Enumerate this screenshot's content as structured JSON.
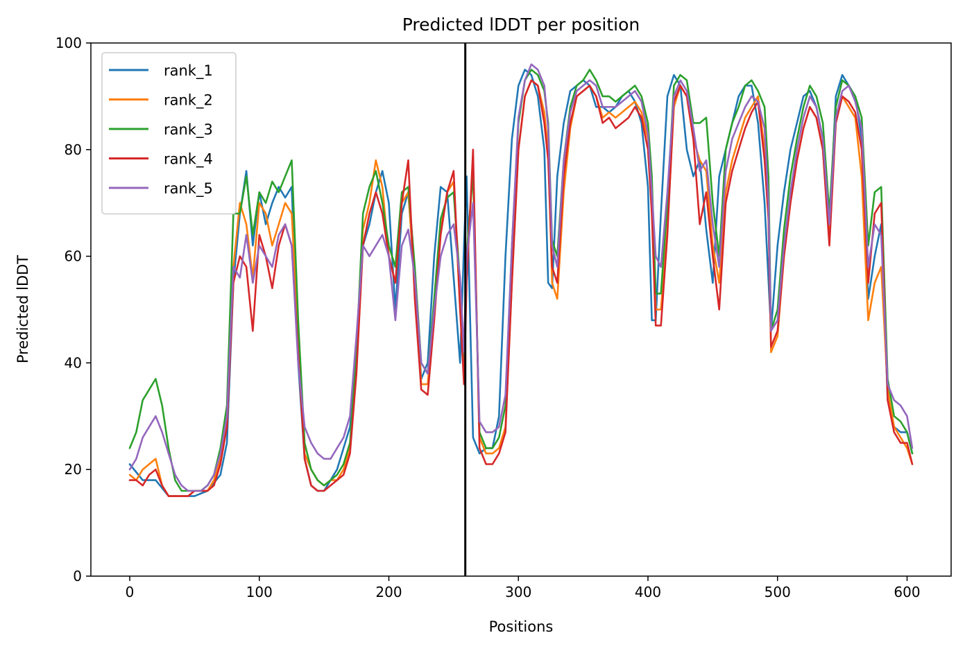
{
  "chart_data": {
    "type": "line",
    "title": "Predicted lDDT per position",
    "xlabel": "Positions",
    "ylabel": "Predicted lDDT",
    "xlim": [
      -30,
      634
    ],
    "ylim": [
      0,
      100
    ],
    "xticks": [
      0,
      100,
      200,
      300,
      400,
      500,
      600
    ],
    "yticks": [
      0,
      20,
      40,
      60,
      80,
      100
    ],
    "grid": false,
    "legend": "top-left",
    "vline": {
      "x": 259,
      "color": "#000000"
    },
    "series": [
      {
        "name": "rank_1",
        "color": "#1f77b4",
        "x": [
          0,
          10,
          20,
          30,
          40,
          50,
          60,
          70,
          75,
          80,
          85,
          90,
          95,
          100,
          105,
          110,
          115,
          120,
          125,
          130,
          135,
          140,
          145,
          150,
          155,
          160,
          165,
          170,
          175,
          180,
          185,
          190,
          195,
          200,
          205,
          210,
          215,
          220,
          225,
          230,
          235,
          240,
          245,
          250,
          255,
          258,
          260,
          265,
          270,
          275,
          280,
          285,
          290,
          295,
          300,
          305,
          310,
          315,
          320,
          323,
          326,
          330,
          335,
          340,
          345,
          350,
          355,
          360,
          365,
          370,
          375,
          380,
          385,
          390,
          395,
          400,
          403,
          406,
          410,
          415,
          420,
          425,
          430,
          435,
          440,
          445,
          450,
          455,
          460,
          465,
          470,
          475,
          480,
          485,
          490,
          495,
          500,
          505,
          510,
          515,
          520,
          525,
          530,
          535,
          540,
          545,
          550,
          555,
          560,
          565,
          570,
          575,
          580,
          585,
          590,
          595,
          600,
          604
        ],
        "values": [
          21,
          18,
          18,
          15,
          15,
          15,
          16,
          19,
          25,
          55,
          68,
          76,
          62,
          72,
          66,
          70,
          73,
          71,
          73,
          40,
          22,
          17,
          16,
          16,
          18,
          20,
          24,
          28,
          40,
          62,
          66,
          72,
          76,
          70,
          50,
          68,
          72,
          55,
          37,
          40,
          60,
          73,
          72,
          56,
          40,
          62,
          75,
          26,
          23,
          24,
          24,
          30,
          60,
          82,
          92,
          95,
          94,
          90,
          80,
          55,
          54,
          75,
          85,
          91,
          92,
          93,
          92,
          88,
          88,
          87,
          88,
          90,
          91,
          89,
          85,
          73,
          48,
          48,
          68,
          90,
          94,
          92,
          80,
          75,
          78,
          65,
          55,
          75,
          80,
          85,
          90,
          92,
          92,
          85,
          70,
          46,
          62,
          72,
          80,
          85,
          90,
          91,
          88,
          82,
          65,
          90,
          94,
          92,
          90,
          82,
          52,
          60,
          66,
          33,
          28,
          27,
          27,
          23
        ]
      },
      {
        "name": "rank_2",
        "color": "#ff7f0e",
        "x": [
          0,
          5,
          10,
          15,
          20,
          25,
          30,
          35,
          40,
          45,
          50,
          55,
          60,
          65,
          70,
          75,
          80,
          85,
          90,
          95,
          100,
          105,
          110,
          115,
          120,
          125,
          130,
          135,
          140,
          145,
          150,
          155,
          160,
          165,
          170,
          175,
          180,
          185,
          190,
          195,
          200,
          205,
          210,
          215,
          220,
          225,
          230,
          235,
          240,
          245,
          250,
          255,
          258,
          260,
          265,
          270,
          275,
          280,
          285,
          290,
          295,
          300,
          305,
          310,
          315,
          320,
          323,
          326,
          330,
          335,
          340,
          345,
          350,
          355,
          360,
          365,
          370,
          375,
          380,
          385,
          390,
          395,
          400,
          403,
          406,
          410,
          415,
          420,
          425,
          430,
          435,
          440,
          445,
          450,
          455,
          460,
          465,
          470,
          475,
          480,
          485,
          490,
          493,
          495,
          500,
          505,
          510,
          515,
          520,
          525,
          530,
          535,
          540,
          545,
          550,
          555,
          560,
          565,
          570,
          575,
          580,
          585,
          590,
          595,
          600,
          604
        ],
        "values": [
          19,
          18,
          20,
          21,
          22,
          17,
          15,
          15,
          15,
          15,
          16,
          16,
          16,
          18,
          22,
          28,
          58,
          70,
          66,
          56,
          70,
          68,
          62,
          66,
          70,
          68,
          45,
          23,
          20,
          18,
          17,
          18,
          18,
          20,
          24,
          40,
          65,
          70,
          78,
          73,
          60,
          55,
          70,
          72,
          55,
          36,
          36,
          50,
          65,
          72,
          74,
          50,
          40,
          60,
          76,
          26,
          23,
          23,
          24,
          28,
          55,
          80,
          90,
          93,
          92,
          87,
          80,
          55,
          52,
          72,
          84,
          90,
          91,
          92,
          90,
          86,
          87,
          86,
          87,
          88,
          89,
          87,
          82,
          70,
          50,
          50,
          65,
          88,
          92,
          90,
          82,
          78,
          76,
          62,
          55,
          72,
          78,
          82,
          86,
          88,
          90,
          80,
          68,
          42,
          45,
          60,
          70,
          78,
          84,
          88,
          86,
          80,
          64,
          85,
          90,
          88,
          86,
          75,
          48,
          55,
          58,
          35,
          28,
          26,
          24,
          21
        ]
      },
      {
        "name": "rank_3",
        "color": "#2ca02c",
        "x": [
          0,
          5,
          10,
          15,
          20,
          25,
          30,
          35,
          40,
          45,
          50,
          55,
          60,
          65,
          70,
          75,
          80,
          85,
          90,
          95,
          100,
          105,
          110,
          115,
          120,
          125,
          130,
          135,
          140,
          145,
          150,
          155,
          160,
          165,
          170,
          175,
          180,
          185,
          190,
          195,
          200,
          205,
          210,
          215,
          220,
          225,
          230,
          235,
          240,
          245,
          250,
          255,
          258,
          260,
          265,
          270,
          275,
          280,
          285,
          290,
          295,
          300,
          305,
          310,
          315,
          320,
          323,
          326,
          330,
          335,
          340,
          345,
          350,
          355,
          360,
          365,
          370,
          375,
          380,
          385,
          390,
          395,
          400,
          403,
          406,
          410,
          415,
          420,
          425,
          430,
          435,
          440,
          445,
          450,
          455,
          460,
          465,
          470,
          475,
          480,
          485,
          490,
          493,
          495,
          500,
          505,
          510,
          515,
          520,
          525,
          530,
          535,
          540,
          545,
          550,
          555,
          560,
          565,
          570,
          575,
          580,
          585,
          590,
          595,
          600,
          604
        ],
        "values": [
          24,
          27,
          33,
          35,
          37,
          32,
          24,
          18,
          16,
          16,
          16,
          16,
          17,
          19,
          24,
          32,
          68,
          68,
          75,
          64,
          72,
          70,
          74,
          72,
          75,
          78,
          48,
          25,
          20,
          18,
          17,
          18,
          19,
          21,
          25,
          42,
          68,
          73,
          76,
          70,
          62,
          58,
          72,
          73,
          58,
          40,
          38,
          52,
          67,
          71,
          72,
          55,
          40,
          60,
          76,
          27,
          24,
          24,
          26,
          32,
          62,
          85,
          93,
          95,
          94,
          91,
          85,
          63,
          60,
          78,
          88,
          92,
          93,
          95,
          93,
          90,
          90,
          89,
          90,
          91,
          92,
          90,
          85,
          75,
          53,
          53,
          70,
          92,
          94,
          93,
          85,
          85,
          86,
          70,
          60,
          80,
          85,
          88,
          92,
          93,
          91,
          88,
          75,
          46,
          50,
          65,
          75,
          82,
          88,
          92,
          90,
          85,
          68,
          88,
          93,
          92,
          90,
          86,
          62,
          72,
          73,
          37,
          30,
          29,
          27,
          23
        ]
      },
      {
        "name": "rank_4",
        "color": "#d62728",
        "x": [
          0,
          5,
          10,
          15,
          20,
          25,
          30,
          35,
          40,
          45,
          50,
          55,
          60,
          65,
          70,
          75,
          80,
          85,
          90,
          95,
          100,
          105,
          110,
          115,
          120,
          125,
          130,
          135,
          140,
          145,
          150,
          155,
          160,
          165,
          170,
          175,
          180,
          185,
          190,
          195,
          200,
          205,
          210,
          215,
          220,
          225,
          230,
          235,
          240,
          245,
          250,
          255,
          258,
          260,
          265,
          270,
          275,
          280,
          285,
          290,
          295,
          300,
          305,
          310,
          315,
          320,
          323,
          326,
          330,
          335,
          340,
          345,
          350,
          355,
          360,
          365,
          370,
          375,
          380,
          385,
          390,
          395,
          400,
          403,
          406,
          410,
          415,
          420,
          425,
          430,
          435,
          440,
          445,
          450,
          455,
          460,
          465,
          470,
          475,
          480,
          485,
          490,
          493,
          495,
          500,
          505,
          510,
          515,
          520,
          525,
          530,
          535,
          540,
          545,
          550,
          555,
          560,
          565,
          570,
          575,
          580,
          585,
          590,
          595,
          600,
          604
        ],
        "values": [
          18,
          18,
          17,
          19,
          20,
          17,
          15,
          15,
          15,
          15,
          16,
          16,
          16,
          17,
          21,
          28,
          55,
          60,
          58,
          46,
          64,
          60,
          54,
          62,
          66,
          62,
          42,
          22,
          17,
          16,
          16,
          17,
          18,
          19,
          23,
          38,
          62,
          68,
          72,
          68,
          60,
          55,
          70,
          78,
          52,
          35,
          34,
          48,
          64,
          72,
          76,
          50,
          36,
          55,
          80,
          24,
          21,
          21,
          23,
          27,
          55,
          80,
          90,
          93,
          92,
          85,
          78,
          58,
          55,
          75,
          85,
          90,
          91,
          92,
          90,
          85,
          86,
          84,
          85,
          86,
          88,
          86,
          80,
          68,
          47,
          47,
          64,
          89,
          92,
          90,
          82,
          66,
          72,
          60,
          50,
          70,
          76,
          80,
          84,
          87,
          89,
          78,
          67,
          43,
          46,
          60,
          70,
          78,
          84,
          88,
          86,
          80,
          62,
          85,
          90,
          89,
          87,
          80,
          55,
          68,
          70,
          33,
          27,
          25,
          25,
          21
        ]
      },
      {
        "name": "rank_5",
        "color": "#9467bd",
        "x": [
          0,
          5,
          10,
          15,
          20,
          25,
          30,
          35,
          40,
          45,
          50,
          55,
          60,
          65,
          70,
          75,
          80,
          85,
          90,
          95,
          100,
          105,
          110,
          115,
          120,
          125,
          130,
          135,
          140,
          145,
          150,
          155,
          160,
          165,
          170,
          175,
          180,
          185,
          190,
          195,
          200,
          205,
          210,
          215,
          220,
          225,
          230,
          235,
          240,
          245,
          250,
          255,
          258,
          260,
          265,
          270,
          275,
          280,
          285,
          290,
          295,
          300,
          305,
          310,
          315,
          320,
          323,
          326,
          330,
          335,
          340,
          345,
          350,
          355,
          360,
          365,
          370,
          375,
          380,
          385,
          390,
          395,
          400,
          403,
          406,
          410,
          415,
          420,
          425,
          430,
          435,
          440,
          445,
          450,
          455,
          460,
          465,
          470,
          475,
          480,
          485,
          490,
          493,
          495,
          500,
          505,
          510,
          515,
          520,
          525,
          530,
          535,
          540,
          545,
          550,
          555,
          560,
          565,
          570,
          575,
          580,
          585,
          590,
          595,
          600,
          604
        ],
        "values": [
          20,
          22,
          26,
          28,
          30,
          27,
          23,
          19,
          17,
          16,
          16,
          16,
          17,
          19,
          23,
          30,
          58,
          56,
          64,
          55,
          62,
          60,
          58,
          64,
          66,
          62,
          40,
          28,
          25,
          23,
          22,
          22,
          24,
          26,
          30,
          45,
          62,
          60,
          62,
          64,
          60,
          48,
          62,
          65,
          56,
          40,
          38,
          50,
          60,
          64,
          66,
          56,
          42,
          60,
          70,
          29,
          27,
          27,
          28,
          34,
          62,
          86,
          93,
          96,
          95,
          92,
          84,
          62,
          58,
          78,
          87,
          91,
          92,
          93,
          92,
          88,
          88,
          88,
          89,
          90,
          91,
          89,
          83,
          72,
          60,
          58,
          72,
          90,
          93,
          91,
          84,
          76,
          78,
          66,
          58,
          76,
          82,
          85,
          88,
          90,
          89,
          84,
          70,
          46,
          48,
          62,
          72,
          80,
          86,
          90,
          88,
          82,
          66,
          86,
          91,
          92,
          89,
          84,
          58,
          66,
          64,
          36,
          33,
          32,
          30,
          24
        ]
      }
    ]
  }
}
